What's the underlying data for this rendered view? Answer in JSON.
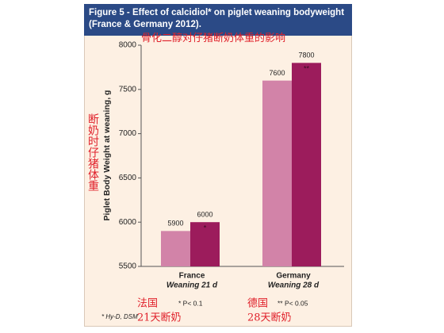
{
  "chart_data": {
    "type": "bar",
    "title": "Figure 5 - Effect of calcidiol* on piglet weaning bodyweight (France & Germany 2012).",
    "subtitle": "骨化二醇对仔猪断奶体重的影响",
    "y_label": "Piglet Body Weight at weaning, g",
    "y_label_cn": "断奶时仔猪体重",
    "categories": [
      "France",
      "Germany"
    ],
    "category_sublabels": [
      "Weaning 21 d",
      "Weaning 28 d"
    ],
    "categories_cn": [
      "法国",
      "德国"
    ],
    "category_sublabels_cn": [
      "21天断奶",
      "28天断奶"
    ],
    "series": [
      {
        "color": "#d283a8",
        "values": [
          5900,
          7600
        ]
      },
      {
        "color": "#9c1c5c",
        "values": [
          6000,
          7800
        ],
        "significance": [
          "*",
          "**"
        ]
      }
    ],
    "significance_notes": [
      "* P< 0.1",
      "** P< 0.05"
    ],
    "footnote": "* Hy-D, DSM",
    "ylim": [
      5500,
      8000
    ],
    "yticks": [
      5500,
      6000,
      6500,
      7000,
      7500,
      8000
    ],
    "grid": false
  }
}
